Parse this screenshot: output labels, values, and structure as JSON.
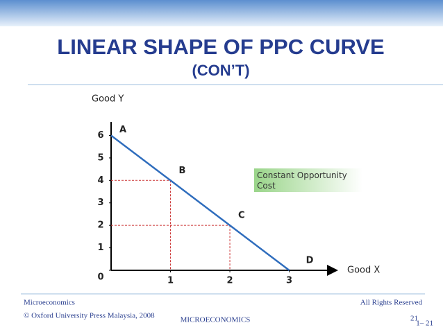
{
  "chart_data": {
    "type": "line",
    "title": "LINEAR SHAPE OF PPC CURVE",
    "subtitle": "(CON’T)",
    "x_label": "Good X",
    "y_label": "Good Y",
    "x": [
      0,
      1,
      2,
      3
    ],
    "series": [
      {
        "color": "#2f6dbd",
        "values": [
          6,
          4,
          2,
          0
        ]
      }
    ],
    "point_labels": [
      "A",
      "B",
      "C",
      "D"
    ],
    "guide_points": [
      1,
      2
    ],
    "guide_color": "#cc3333",
    "annotation": "Constant Opportunity Cost",
    "xlim": [
      0,
      3.8
    ],
    "ylim": [
      0,
      6.6
    ],
    "xticks": [
      1,
      2,
      3
    ],
    "yticks": [
      0,
      1,
      2,
      3,
      4,
      5,
      6
    ]
  },
  "footer": {
    "left_top": "Microeconomics",
    "left_bottom": "© Oxford University Press Malaysia, 2008",
    "center": "MICROECONOMICS",
    "right_top": "All Rights Reserved",
    "page": "21",
    "slide": "1– 21"
  }
}
